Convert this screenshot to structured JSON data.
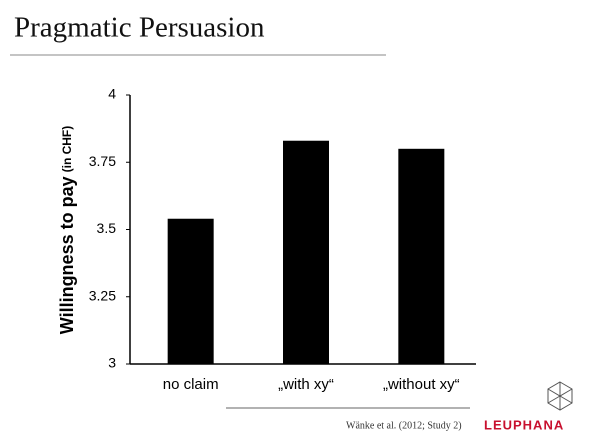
{
  "title": "Pragmatic Persuasion",
  "chart_data": {
    "type": "bar",
    "y_label": "Willingness to pay",
    "y_label_unit": "(in CHF)",
    "categories": [
      "no claim",
      "„with xy“",
      "„without xy“"
    ],
    "values": [
      3.54,
      3.83,
      3.8
    ],
    "color": "#000000",
    "ylim": [
      3,
      4
    ],
    "yticks": [
      3,
      3.25,
      3.5,
      3.75,
      4
    ]
  },
  "footer": {
    "citation": "Wänke et al. (2012; Study 2)",
    "brand": "LEUPHANA"
  }
}
